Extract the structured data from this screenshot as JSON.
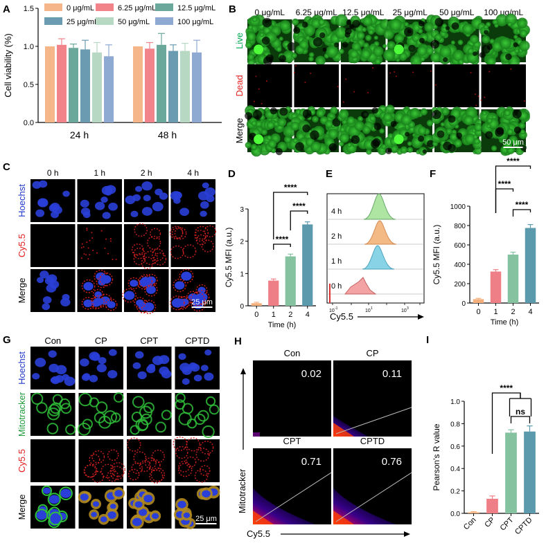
{
  "colors": {
    "c0": "#f5b78a",
    "c625": "#f2838a",
    "c125": "#6aa89b",
    "c25": "#6a9bb0",
    "c50": "#b7d9c4",
    "c100": "#8ea9d2",
    "d0": "#f3b07d",
    "d1": "#ef7f86",
    "d2": "#84c2a0",
    "d4": "#5b9aad",
    "live": "#00a850",
    "dead": "#e22020",
    "hoechst": "#2038c8",
    "cy55": "#e22020",
    "mito": "#1f9b3a"
  },
  "panels": {
    "A": "A",
    "B": "B",
    "C": "C",
    "D": "D",
    "E": "E",
    "F": "F",
    "G": "G",
    "H": "H",
    "I": "I"
  },
  "panel_b": {
    "cols": [
      "0 μg/mL",
      "6.25 μg/mL",
      "12.5 μg/mL",
      "25 μg/mL",
      "50 μg/mL",
      "100 μg/mL"
    ],
    "rows": [
      "Live",
      "Dead",
      "Merge"
    ],
    "scale": "50 μm"
  },
  "panel_c": {
    "cols": [
      "0 h",
      "1 h",
      "2 h",
      "4 h"
    ],
    "rows": [
      "Hoechst",
      "Cy5.5",
      "Merge"
    ],
    "scale": "25 μm"
  },
  "panel_e": {
    "labels": [
      "4 h",
      "2 h",
      "1 h",
      "0 h"
    ],
    "xlabel": "Cy5.5",
    "ticks": [
      "10",
      "10",
      "10",
      "10",
      "10",
      "10"
    ],
    "exps": [
      "-1",
      "1",
      "3",
      "5"
    ]
  },
  "panel_g": {
    "cols": [
      "Con",
      "CP",
      "CPT",
      "CPTD"
    ],
    "rows": [
      "Hoechst",
      "Mitotracker",
      "Cy5.5",
      "Merge"
    ],
    "scale": "25 μm"
  },
  "panel_h": {
    "groups": [
      "Con",
      "CP",
      "CPT",
      "CPTD"
    ],
    "values": [
      "0.02",
      "0.11",
      "0.71",
      "0.76"
    ],
    "ylabel": "Mitotracker",
    "xlabel": "Cy5.5"
  },
  "chart_data": [
    {
      "id": "A",
      "type": "bar",
      "categories": [
        "24 h",
        "48 h"
      ],
      "series": [
        {
          "name": "0 μg/mL",
          "values": [
            1.0,
            1.0
          ],
          "err": [
            0.0,
            0.0
          ]
        },
        {
          "name": "6.25 μg/mL",
          "values": [
            1.02,
            0.97
          ],
          "err": [
            0.08,
            0.08
          ]
        },
        {
          "name": "12.5 μg/mL",
          "values": [
            0.98,
            1.02
          ],
          "err": [
            0.05,
            0.15
          ]
        },
        {
          "name": "25 μg/mL",
          "values": [
            0.96,
            0.94
          ],
          "err": [
            0.12,
            0.08
          ]
        },
        {
          "name": "50 μg/mL",
          "values": [
            0.92,
            0.94
          ],
          "err": [
            0.13,
            0.1
          ]
        },
        {
          "name": "100 μg/mL",
          "values": [
            0.87,
            0.92
          ],
          "err": [
            0.15,
            0.16
          ]
        }
      ],
      "ylabel": "Cell viability (%)",
      "ylim": [
        0,
        1.5
      ],
      "yticks": [
        "0.0",
        "0.5",
        "1.0",
        "1.5"
      ],
      "legend": "top"
    },
    {
      "id": "D",
      "type": "bar",
      "categories": [
        "0",
        "1",
        "2",
        "4"
      ],
      "values": [
        0.08,
        0.78,
        1.53,
        2.52
      ],
      "err": [
        0.03,
        0.05,
        0.07,
        0.08
      ],
      "xlabel": "Time (h)",
      "ylabel": "Cy5.5 MFI (a.u.)",
      "ylim": [
        0,
        3
      ],
      "yticks": [
        "0",
        "1",
        "2",
        "3"
      ],
      "sig": [
        "****",
        "****",
        "****"
      ]
    },
    {
      "id": "F",
      "type": "bar",
      "categories": [
        "0",
        "1",
        "2",
        "4"
      ],
      "values": [
        40,
        325,
        500,
        775
      ],
      "err": [
        8,
        20,
        25,
        35
      ],
      "xlabel": "Time (h)",
      "ylabel": "Cy5.5 MFI (a.u.)",
      "ylim": [
        0,
        1000
      ],
      "yticks": [
        "0",
        "200",
        "400",
        "600",
        "800",
        "1000"
      ],
      "sig": [
        "****",
        "****",
        "****"
      ]
    },
    {
      "id": "I",
      "type": "bar",
      "categories": [
        "Con",
        "CP",
        "CPT",
        "CPTD"
      ],
      "values": [
        0.01,
        0.13,
        0.72,
        0.73
      ],
      "err": [
        0.005,
        0.025,
        0.025,
        0.05
      ],
      "ylabel": "Pearson's R value",
      "ylim": [
        0,
        1.0
      ],
      "yticks": [
        "0.0",
        "0.2",
        "0.4",
        "0.6",
        "0.8",
        "1.0"
      ],
      "sig": [
        "****",
        "ns"
      ]
    }
  ]
}
